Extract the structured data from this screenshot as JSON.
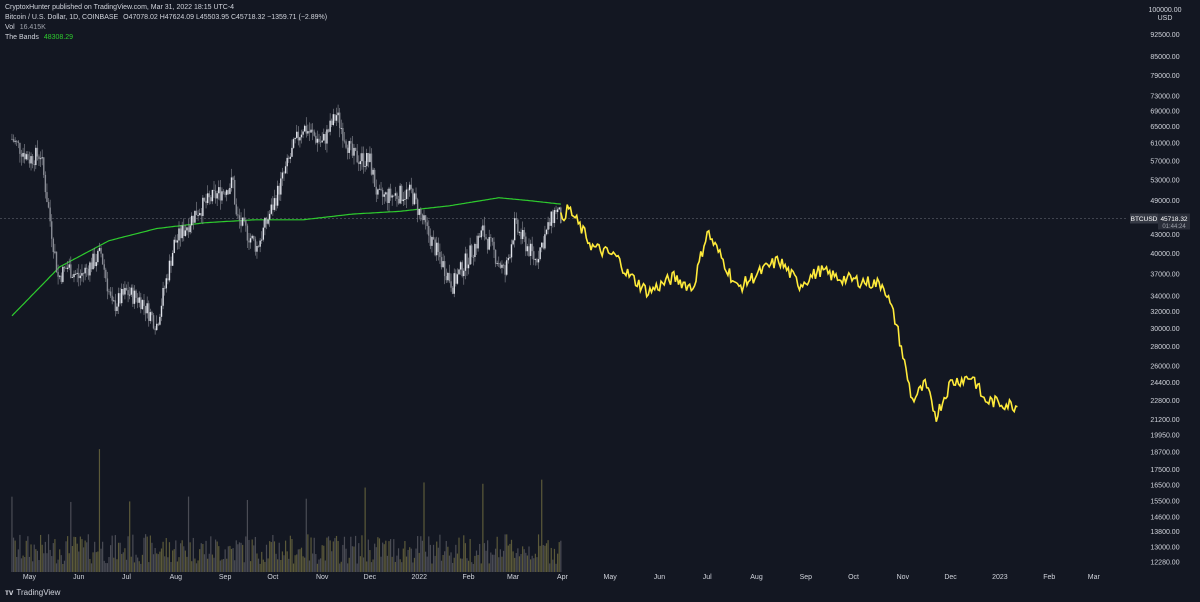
{
  "header": {
    "published": "CryptoxHunter published on TradingView.com, Mar 31, 2022 18:15 UTC-4",
    "symbol_line": "Bitcoin / U.S. Dollar, 1D, COINBASE",
    "ohlc": "O47078.02 H47624.09 L45503.95 C45718.32 −1359.71 (−2.89%)",
    "vol_label": "Vol",
    "vol_value": "16.415K",
    "bands_label": "The Bands",
    "bands_value": "48308.29"
  },
  "footer": {
    "brand": "TradingView"
  },
  "colors": {
    "background": "#131722",
    "candles": "#b2b5be",
    "projection": "#ffeb3b",
    "bands_line": "#2ecc2e",
    "axis_text": "#d1d4dc",
    "price_tag": "#363a45"
  },
  "chart_data": {
    "type": "line",
    "title": "Bitcoin / U.S. Dollar, 1D, COINBASE",
    "y_axis": {
      "scale": "log",
      "currency": "USD",
      "ticks": [
        100000,
        92500,
        85000,
        79000,
        73000,
        69000,
        65000,
        61000,
        57000,
        53000,
        49000,
        43000,
        40000,
        37000,
        34000,
        32000,
        30000,
        28000,
        26000,
        24400,
        22800,
        21200,
        19950,
        18700,
        17500,
        16500,
        15500,
        14600,
        13800,
        13000,
        12280
      ],
      "tick_labels": [
        "100000.00",
        "92500.00",
        "85000.00",
        "79000.00",
        "73000.00",
        "69000.00",
        "65000.00",
        "61000.00",
        "57000.00",
        "53000.00",
        "49000.00",
        "43000.00",
        "40000.00",
        "37000.00",
        "34000.00",
        "32000.00",
        "30000.00",
        "28000.00",
        "26000.00",
        "24400.00",
        "22800.00",
        "21200.00",
        "19950.00",
        "18700.00",
        "17500.00",
        "16500.00",
        "15500.00",
        "14600.00",
        "13800.00",
        "13000.00",
        "12280.00"
      ],
      "top_label": "USD"
    },
    "x_axis": {
      "labels": [
        "May",
        "Jun",
        "Jul",
        "Aug",
        "Sep",
        "Oct",
        "Nov",
        "Dec",
        "2022",
        "Feb",
        "Mar",
        "Apr",
        "May",
        "Jun",
        "Jul",
        "Aug",
        "Sep",
        "Oct",
        "Nov",
        "Dec",
        "2023",
        "Feb",
        "Mar"
      ]
    },
    "last_price": {
      "symbol": "BTCUSD",
      "value": 45718.32,
      "label": "45718.32",
      "countdown": "01:44:24"
    },
    "series": [
      {
        "name": "BTCUSD",
        "kind": "candles",
        "points": [
          [
            "2021-04-20",
            62000
          ],
          [
            "2021-05-01",
            57500
          ],
          [
            "2021-05-08",
            58500
          ],
          [
            "2021-05-12",
            49500
          ],
          [
            "2021-05-19",
            36500
          ],
          [
            "2021-05-25",
            38000
          ],
          [
            "2021-06-01",
            36500
          ],
          [
            "2021-06-15",
            40000
          ],
          [
            "2021-06-22",
            32500
          ],
          [
            "2021-07-01",
            34500
          ],
          [
            "2021-07-10",
            33500
          ],
          [
            "2021-07-20",
            30500
          ],
          [
            "2021-07-31",
            41500
          ],
          [
            "2021-08-14",
            47000
          ],
          [
            "2021-08-22",
            49000
          ],
          [
            "2021-09-06",
            52500
          ],
          [
            "2021-09-08",
            46000
          ],
          [
            "2021-09-21",
            41000
          ],
          [
            "2021-10-01",
            48000
          ],
          [
            "2021-10-15",
            61000
          ],
          [
            "2021-10-20",
            65000
          ],
          [
            "2021-11-01",
            61000
          ],
          [
            "2021-11-10",
            68000
          ],
          [
            "2021-11-20",
            58000
          ],
          [
            "2021-12-01",
            57000
          ],
          [
            "2021-12-06",
            49500
          ],
          [
            "2021-12-27",
            50500
          ],
          [
            "2022-01-06",
            43500
          ],
          [
            "2022-01-22",
            35500
          ],
          [
            "2022-02-10",
            43500
          ],
          [
            "2022-02-24",
            37000
          ],
          [
            "2022-03-02",
            44500
          ],
          [
            "2022-03-15",
            39000
          ],
          [
            "2022-03-28",
            47500
          ],
          [
            "2022-03-31",
            45718
          ]
        ]
      },
      {
        "name": "Projection",
        "kind": "line",
        "points": [
          [
            "2022-03-31",
            45718
          ],
          [
            "2022-04-05",
            47500
          ],
          [
            "2022-04-20",
            41000
          ],
          [
            "2022-05-05",
            39500
          ],
          [
            "2022-05-12",
            37000
          ],
          [
            "2022-05-25",
            34500
          ],
          [
            "2022-06-10",
            36500
          ],
          [
            "2022-06-22",
            35000
          ],
          [
            "2022-07-01",
            43500
          ],
          [
            "2022-07-12",
            38500
          ],
          [
            "2022-07-20",
            35000
          ],
          [
            "2022-08-05",
            37500
          ],
          [
            "2022-08-15",
            39000
          ],
          [
            "2022-08-28",
            35500
          ],
          [
            "2022-09-10",
            37500
          ],
          [
            "2022-09-20",
            36500
          ],
          [
            "2022-10-05",
            36000
          ],
          [
            "2022-10-20",
            35500
          ],
          [
            "2022-10-28",
            30500
          ],
          [
            "2022-11-03",
            25500
          ],
          [
            "2022-11-07",
            22800
          ],
          [
            "2022-11-15",
            24200
          ],
          [
            "2022-11-22",
            21500
          ],
          [
            "2022-12-01",
            24400
          ],
          [
            "2022-12-15",
            25000
          ],
          [
            "2022-12-22",
            22800
          ],
          [
            "2023-01-05",
            22500
          ],
          [
            "2023-01-12",
            22300
          ]
        ]
      },
      {
        "name": "The Bands",
        "kind": "line",
        "points": [
          [
            "2021-04-20",
            31500
          ],
          [
            "2021-05-20",
            38000
          ],
          [
            "2021-06-20",
            42000
          ],
          [
            "2021-07-20",
            44000
          ],
          [
            "2021-08-20",
            45000
          ],
          [
            "2021-09-20",
            45500
          ],
          [
            "2021-10-20",
            45500
          ],
          [
            "2021-11-20",
            46500
          ],
          [
            "2021-12-20",
            47000
          ],
          [
            "2022-01-20",
            48000
          ],
          [
            "2022-02-20",
            49500
          ],
          [
            "2022-03-10",
            49000
          ],
          [
            "2022-03-31",
            48308
          ]
        ]
      }
    ],
    "volume": {
      "unit": "K",
      "last": 16.415
    }
  }
}
